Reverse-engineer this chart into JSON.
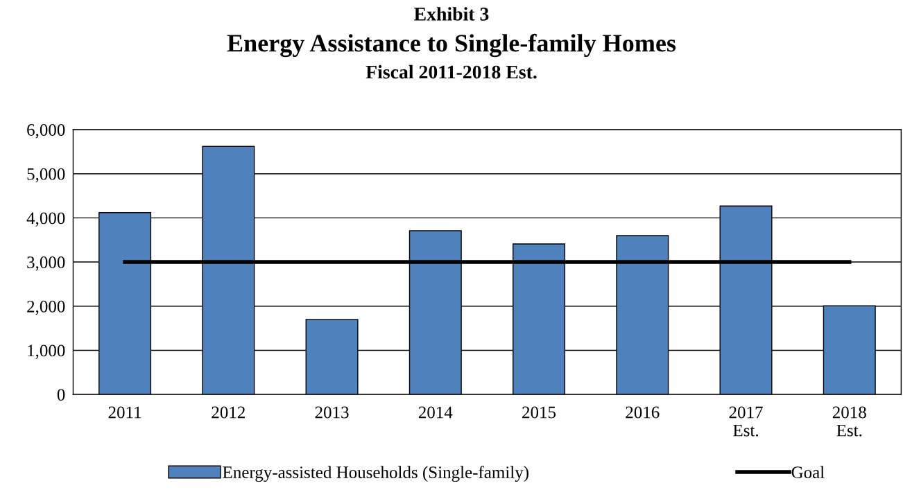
{
  "chart_data": {
    "type": "bar",
    "title": "Energy Assistance to Single-family Homes",
    "subtitle": "Fiscal 2011-2018 Est.",
    "annotations": [
      "Exhibit 3"
    ],
    "categories": [
      "2011",
      "2012",
      "2013",
      "2014",
      "2015",
      "2016",
      "2017\nEst.",
      "2018\nEst."
    ],
    "series": [
      {
        "name": "Energy-assisted Households (Single-family)",
        "color": "#4f81bd",
        "values": [
          4120,
          5620,
          1700,
          3710,
          3410,
          3600,
          4270,
          2010
        ]
      },
      {
        "name": "Goal",
        "type": "line",
        "color": "#000000",
        "values": [
          3000,
          3000,
          3000,
          3000,
          3000,
          3000,
          3000,
          3000
        ]
      }
    ],
    "ylim": [
      0,
      6000
    ],
    "yticks": [
      {
        "value": 0,
        "label": "0"
      },
      {
        "value": 1000,
        "label": "1,000"
      },
      {
        "value": 2000,
        "label": "2,000"
      },
      {
        "value": 3000,
        "label": "3,000"
      },
      {
        "value": 4000,
        "label": "4,000"
      },
      {
        "value": 5000,
        "label": "5,000"
      },
      {
        "value": 6000,
        "label": "6,000"
      }
    ],
    "grid": "y",
    "legend": "bottom",
    "marker": "none",
    "line_style": "solid"
  }
}
